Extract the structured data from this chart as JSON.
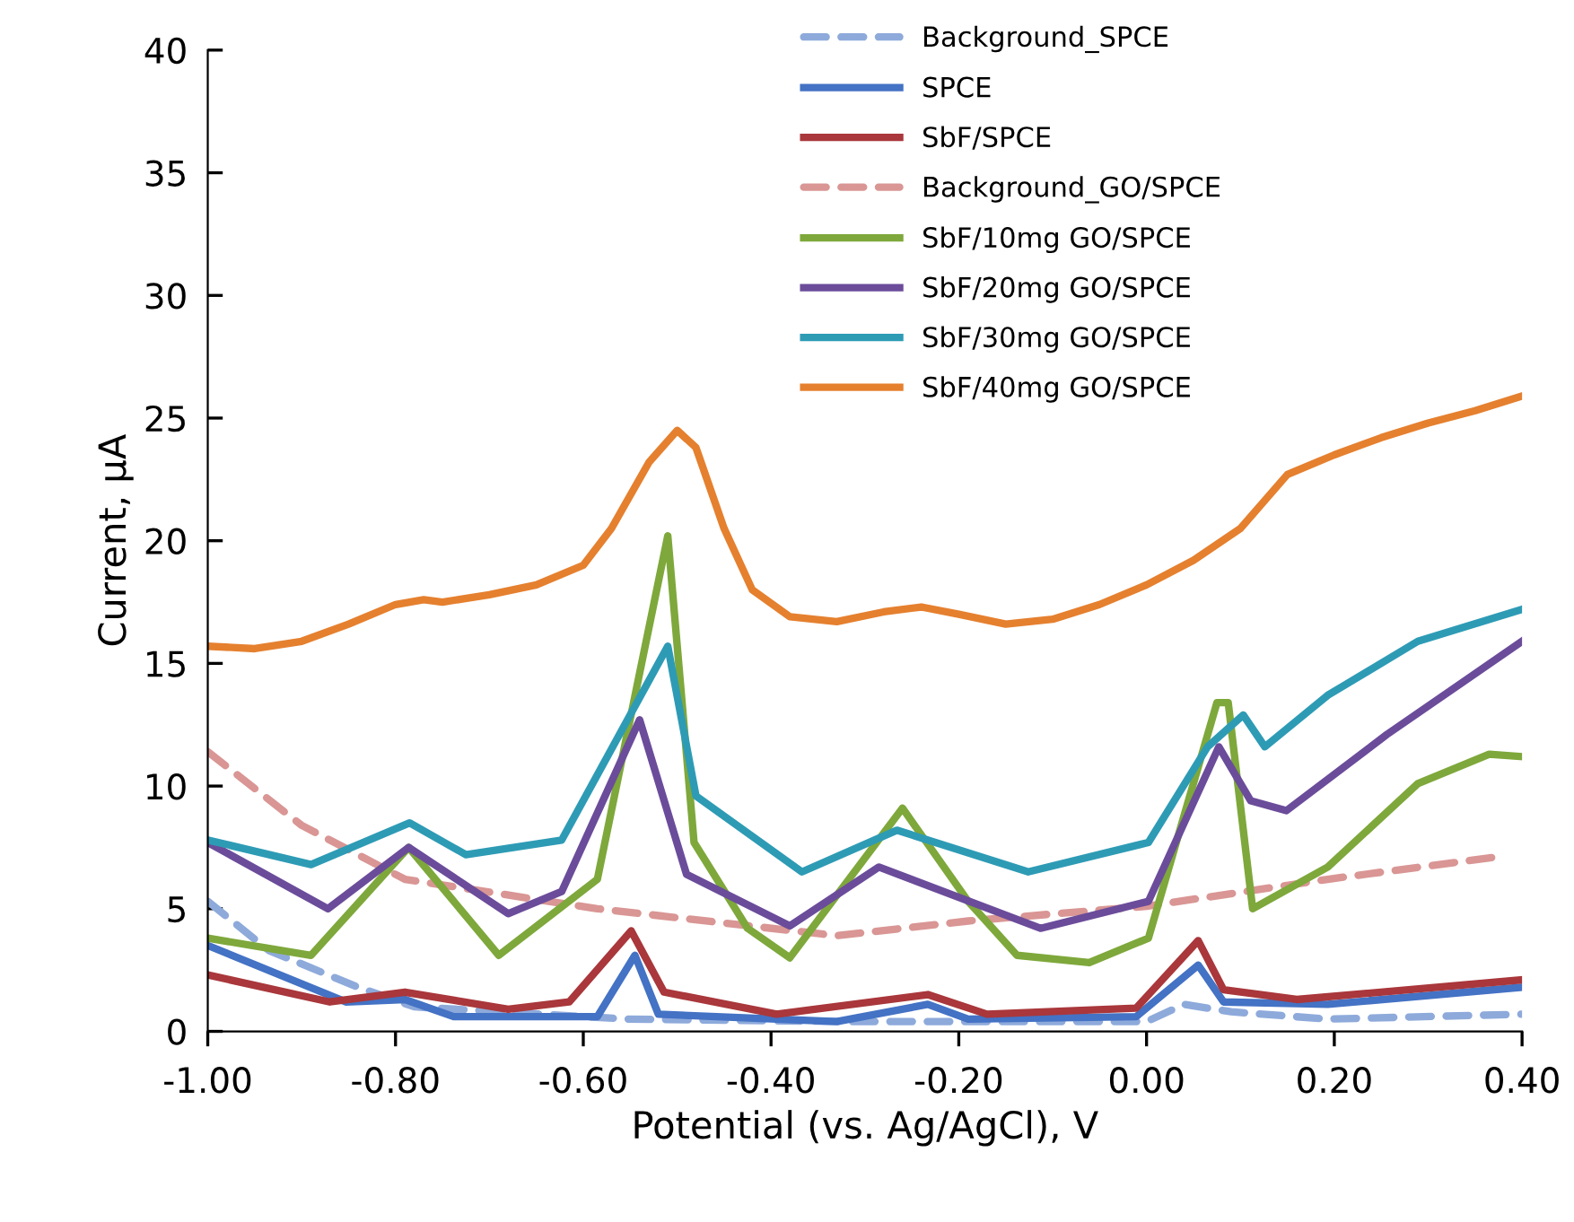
{
  "chart_data": {
    "type": "line",
    "xlabel": "Potential (vs. Ag/AgCl), V",
    "ylabel": "Current, µA",
    "xlim": [
      -1.0,
      0.4
    ],
    "ylim": [
      0,
      40
    ],
    "xticks": [
      {
        "value": -1.0,
        "label": "-1.00"
      },
      {
        "value": -0.8,
        "label": "-0.80"
      },
      {
        "value": -0.6,
        "label": "-0.60"
      },
      {
        "value": -0.4,
        "label": "-0.40"
      },
      {
        "value": -0.2,
        "label": "-0.20"
      },
      {
        "value": 0.0,
        "label": "0.00"
      },
      {
        "value": 0.2,
        "label": "0.20"
      },
      {
        "value": 0.4,
        "label": "0.40"
      }
    ],
    "yticks": [
      0,
      5,
      10,
      15,
      20,
      25,
      30,
      35,
      40
    ],
    "grid": false,
    "legend": "top",
    "marker": "none",
    "series": [
      {
        "name": "Background_SPCE",
        "color": "#8eaadb",
        "line_style": "dashed",
        "x": [
          -1.0,
          -0.935,
          -0.84,
          -0.78,
          -0.553,
          -0.317,
          0.0,
          0.04,
          0.09,
          0.193,
          0.4
        ],
        "values": [
          5.3,
          3.3,
          1.8,
          1.0,
          0.5,
          0.4,
          0.4,
          1.1,
          0.8,
          0.5,
          0.7
        ]
      },
      {
        "name": "SPCE",
        "color": "#4472c4",
        "line_style": "solid",
        "x": [
          -1.0,
          -0.853,
          -0.79,
          -0.738,
          -0.585,
          -0.545,
          -0.52,
          -0.33,
          -0.233,
          -0.19,
          -0.011,
          0.055,
          0.082,
          0.193,
          0.4
        ],
        "values": [
          3.5,
          1.2,
          1.3,
          0.6,
          0.6,
          3.1,
          0.7,
          0.4,
          1.1,
          0.5,
          0.6,
          2.7,
          1.2,
          1.1,
          1.8
        ]
      },
      {
        "name": "SbF/SPCE",
        "color": "#a9373b",
        "line_style": "solid",
        "x": [
          -1.0,
          -0.87,
          -0.79,
          -0.68,
          -0.615,
          -0.549,
          -0.514,
          -0.394,
          -0.233,
          -0.17,
          -0.011,
          0.055,
          0.082,
          0.16,
          0.4
        ],
        "values": [
          2.3,
          1.2,
          1.6,
          0.9,
          1.2,
          4.1,
          1.6,
          0.7,
          1.5,
          0.7,
          0.95,
          3.7,
          1.7,
          1.3,
          2.1
        ]
      },
      {
        "name": "Background_GO/SPCE",
        "color": "#d99694",
        "line_style": "dashed",
        "x": [
          -1.0,
          -0.9,
          -0.79,
          -0.585,
          -0.33,
          -0.19,
          0.0,
          0.193,
          0.371
        ],
        "values": [
          11.4,
          8.4,
          6.2,
          5.0,
          3.9,
          4.5,
          5.1,
          6.2,
          7.1
        ]
      },
      {
        "name": "SbF/10mg GO/SPCE",
        "color": "#7ea83b",
        "line_style": "solid",
        "x": [
          -1.0,
          -0.89,
          -0.786,
          -0.69,
          -0.585,
          -0.51,
          -0.482,
          -0.425,
          -0.38,
          -0.26,
          -0.19,
          -0.138,
          -0.061,
          0.002,
          0.075,
          0.087,
          0.113,
          0.193,
          0.289,
          0.365,
          0.4
        ],
        "values": [
          3.8,
          3.1,
          7.5,
          3.1,
          6.2,
          20.2,
          7.7,
          4.2,
          3.0,
          9.1,
          5.3,
          3.1,
          2.8,
          3.8,
          13.4,
          13.4,
          5.0,
          6.7,
          10.1,
          11.3,
          11.2
        ]
      },
      {
        "name": "SbF/20mg GO/SPCE",
        "color": "#6b4c9a",
        "line_style": "solid",
        "x": [
          -1.0,
          -0.872,
          -0.786,
          -0.68,
          -0.623,
          -0.54,
          -0.49,
          -0.38,
          -0.285,
          -0.113,
          0.002,
          0.077,
          0.111,
          0.149,
          0.256,
          0.4
        ],
        "values": [
          7.7,
          5.0,
          7.5,
          4.8,
          5.7,
          12.7,
          6.4,
          4.3,
          6.7,
          4.2,
          5.3,
          11.6,
          9.4,
          9.0,
          12.1,
          15.9
        ]
      },
      {
        "name": "SbF/30mg GO/SPCE",
        "color": "#2e9bb5",
        "line_style": "solid",
        "x": [
          -1.0,
          -0.89,
          -0.785,
          -0.725,
          -0.623,
          -0.51,
          -0.48,
          -0.367,
          -0.266,
          -0.126,
          0.002,
          0.065,
          0.103,
          0.126,
          0.193,
          0.289,
          0.4
        ],
        "values": [
          7.8,
          6.8,
          8.5,
          7.2,
          7.8,
          15.7,
          9.6,
          6.5,
          8.2,
          6.5,
          7.7,
          11.6,
          12.9,
          11.6,
          13.7,
          15.9,
          17.2
        ]
      },
      {
        "name": "SbF/40mg GO/SPCE",
        "color": "#e5802f",
        "line_style": "solid",
        "x": [
          -1.0,
          -0.95,
          -0.9,
          -0.85,
          -0.8,
          -0.77,
          -0.75,
          -0.7,
          -0.65,
          -0.6,
          -0.57,
          -0.53,
          -0.5,
          -0.48,
          -0.45,
          -0.42,
          -0.38,
          -0.33,
          -0.28,
          -0.24,
          -0.2,
          -0.15,
          -0.1,
          -0.05,
          0.0,
          0.05,
          0.1,
          0.15,
          0.2,
          0.25,
          0.3,
          0.35,
          0.4
        ],
        "values": [
          15.7,
          15.6,
          15.9,
          16.6,
          17.4,
          17.6,
          17.5,
          17.8,
          18.2,
          19.0,
          20.5,
          23.2,
          24.5,
          23.8,
          20.5,
          18.0,
          16.9,
          16.7,
          17.1,
          17.3,
          17.0,
          16.6,
          16.8,
          17.4,
          18.2,
          19.2,
          20.5,
          22.7,
          23.5,
          24.2,
          24.8,
          25.3,
          25.9
        ]
      }
    ]
  }
}
